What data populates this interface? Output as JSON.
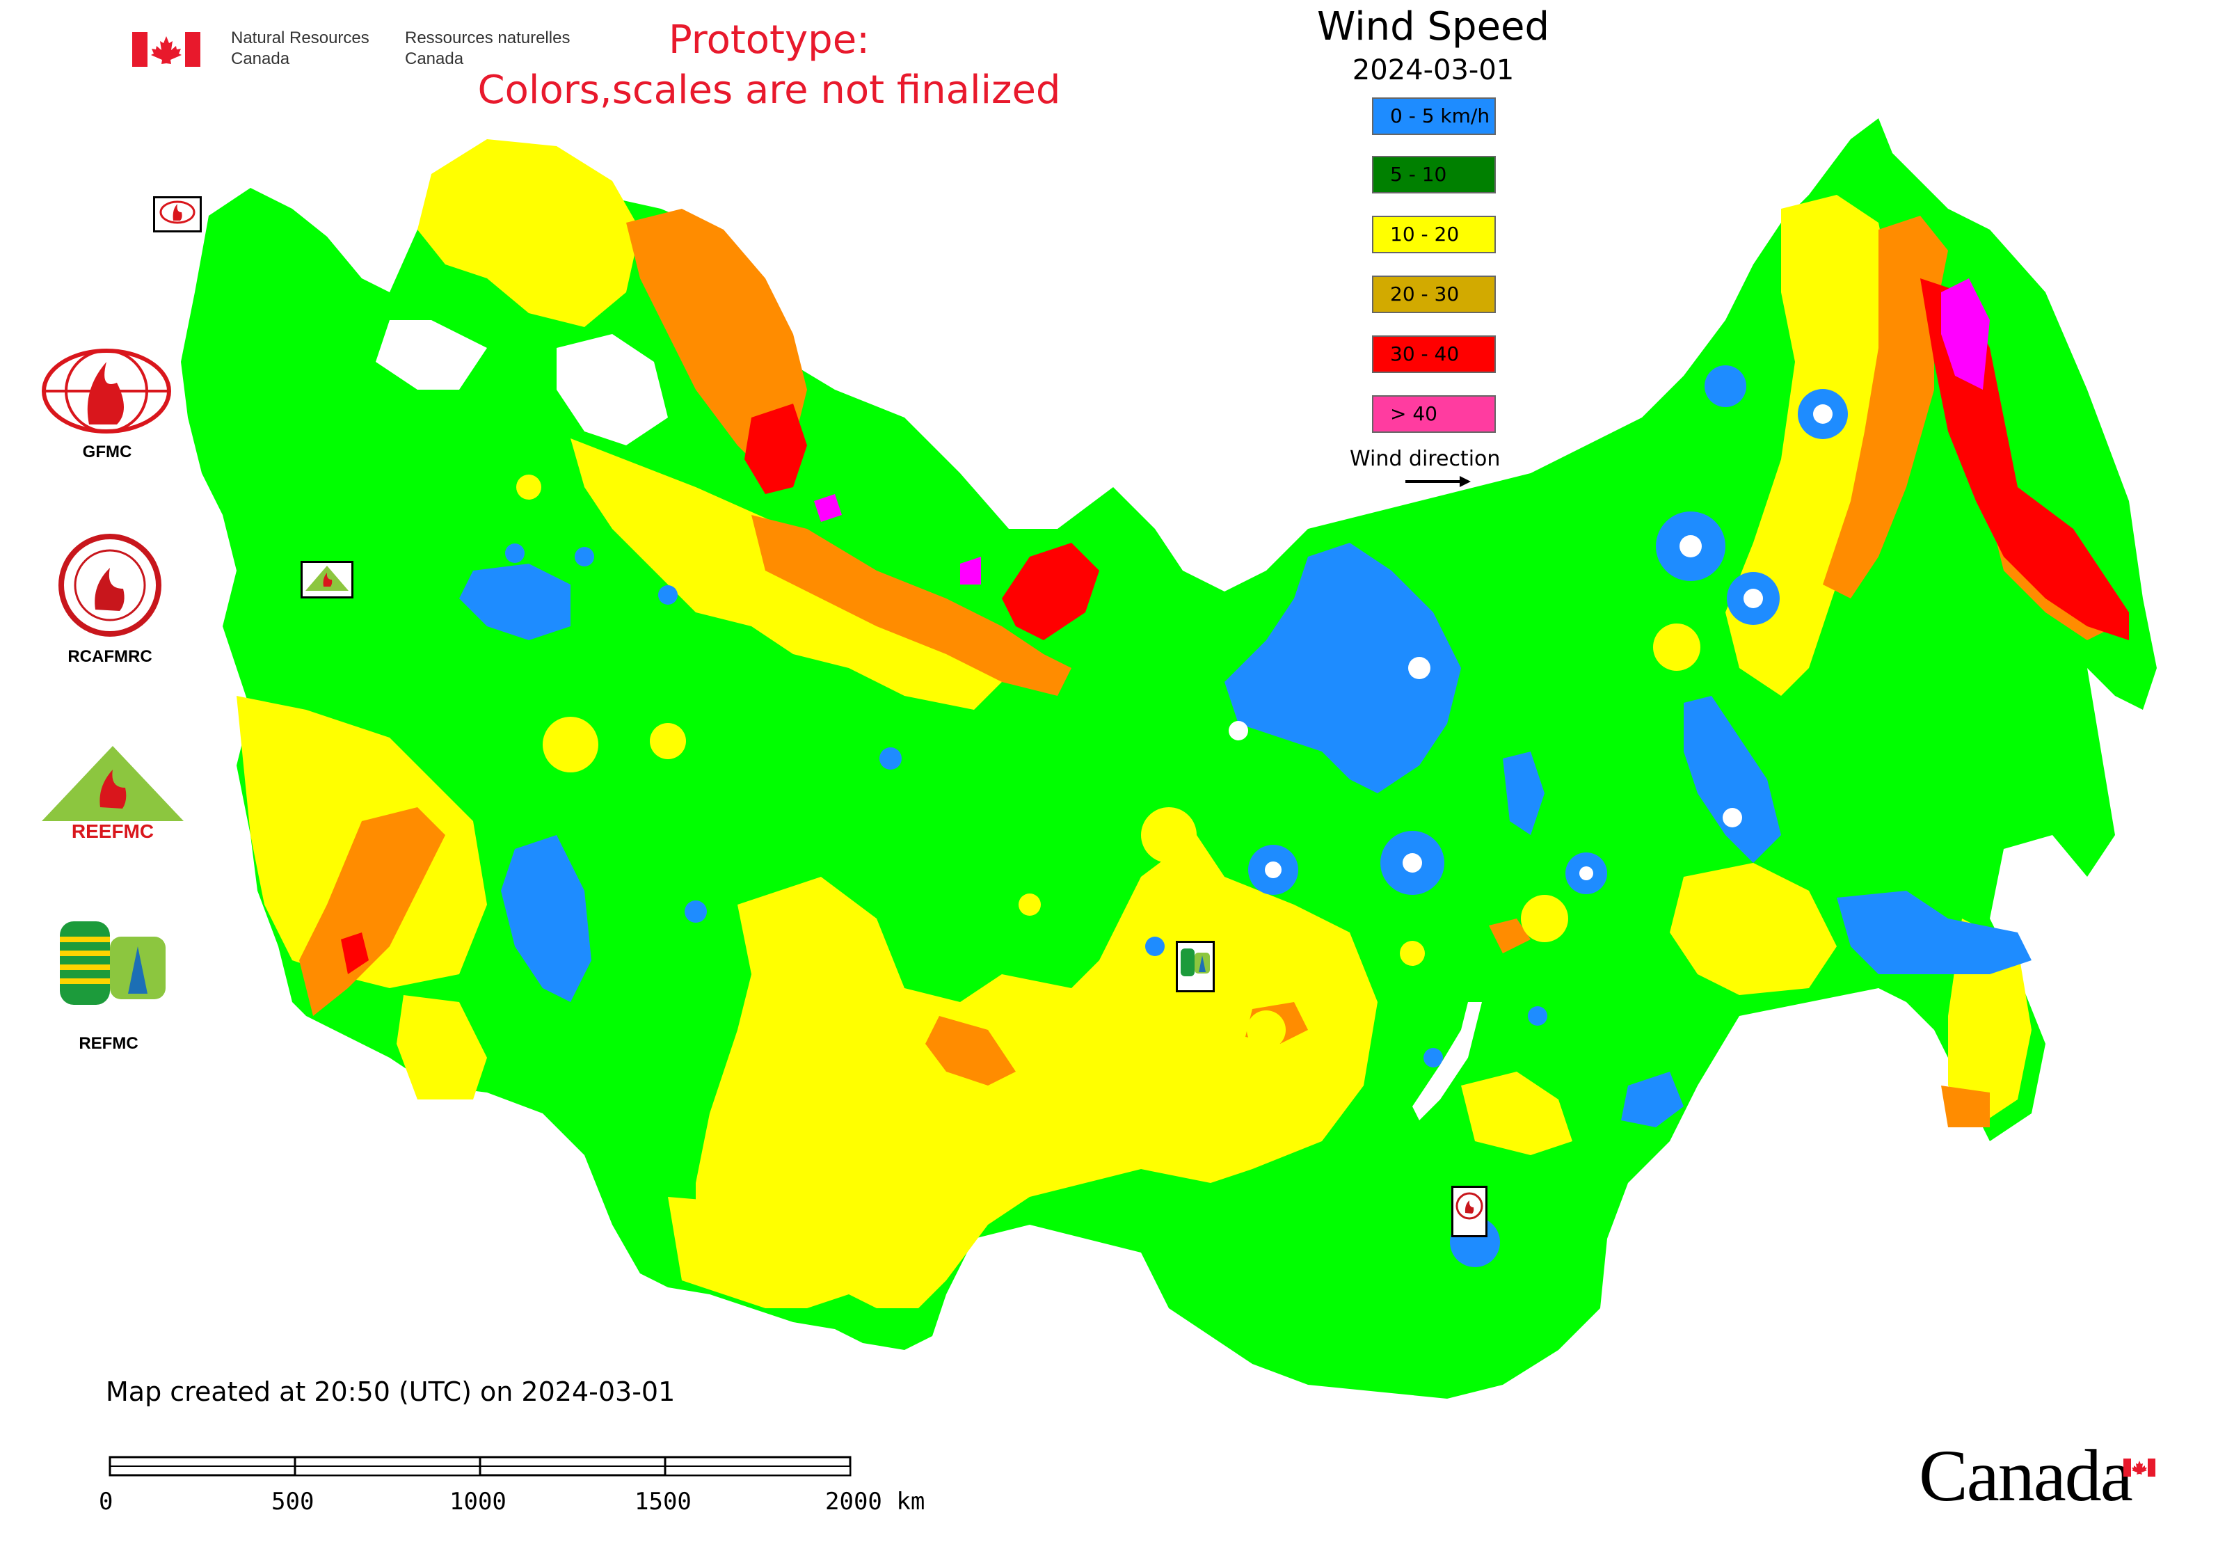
{
  "header": {
    "gov_en_line1": "Natural Resources",
    "gov_en_line2": "Canada",
    "gov_fr_line1": "Ressources naturelles",
    "gov_fr_line2": "Canada",
    "prototype_line1": "Prototype:",
    "prototype_line2": "Colors,scales are not finalized"
  },
  "legend": {
    "title": "Wind Speed",
    "date": "2024-03-01",
    "items": [
      {
        "label": "0 - 5 km/h",
        "color": "#1e8cff"
      },
      {
        "label": "5 - 10",
        "color": "#008000"
      },
      {
        "label": "10 - 20",
        "color": "#ffff00"
      },
      {
        "label": "20 - 30",
        "color": "#d2aa00"
      },
      {
        "label": "30 - 40",
        "color": "#ff0000"
      },
      {
        "label": "> 40",
        "color": "#ff3ca0"
      }
    ],
    "wind_direction_label": "Wind direction"
  },
  "orgs": [
    {
      "label": "GFMC"
    },
    {
      "label": "RCAFMRC"
    },
    {
      "label": "REEFMC"
    },
    {
      "label": "REFMC"
    }
  ],
  "footer": {
    "created": "Map created at 20:50 (UTC) on 2024-03-01",
    "scale_ticks": [
      "0",
      "500",
      "1000",
      "1500",
      "2000 km"
    ],
    "canada_wordmark": "Canada"
  },
  "map_colors": {
    "calm": "#1e8cff",
    "light": "#00ff00",
    "moderate": "#ffff00",
    "strong": "#ff8c00",
    "very_strong": "#ff0000",
    "extreme": "#ff00ff"
  }
}
